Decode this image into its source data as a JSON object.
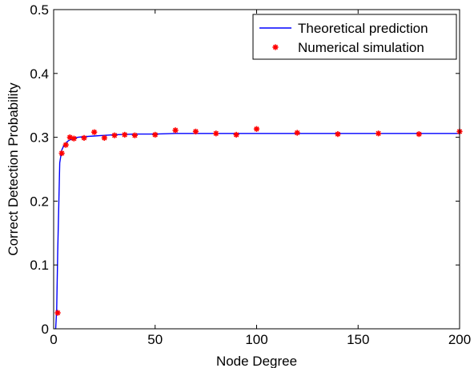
{
  "chart_data": {
    "type": "line",
    "xlabel": "Node Degree",
    "ylabel": "Correct Detection Probability",
    "xlim": [
      0,
      200
    ],
    "ylim": [
      0,
      0.5
    ],
    "xticks": [
      0,
      50,
      100,
      150,
      200
    ],
    "yticks": [
      0,
      0.1,
      0.2,
      0.3,
      0.4,
      0.5
    ],
    "xtick_labels": [
      "0",
      "50",
      "100",
      "150",
      "200"
    ],
    "ytick_labels": [
      "0",
      "0.1",
      "0.2",
      "0.3",
      "0.4",
      "0.5"
    ],
    "grid": false,
    "legend_position": "top-right",
    "series": [
      {
        "name": "Theoretical prediction",
        "kind": "line",
        "color": "#0000ff",
        "x": [
          1,
          1.5,
          2,
          3,
          4,
          5,
          6,
          7,
          8,
          10,
          12,
          15,
          20,
          25,
          30,
          40,
          50,
          60,
          80,
          100,
          120,
          150,
          200
        ],
        "y": [
          0,
          0.03,
          0.12,
          0.26,
          0.28,
          0.287,
          0.291,
          0.294,
          0.296,
          0.298,
          0.3,
          0.301,
          0.302,
          0.303,
          0.304,
          0.305,
          0.305,
          0.306,
          0.306,
          0.306,
          0.306,
          0.306,
          0.306
        ]
      },
      {
        "name": "Numerical simulation",
        "kind": "scatter",
        "color": "#ff0000",
        "x": [
          2,
          4,
          6,
          8,
          10,
          15,
          20,
          25,
          30,
          35,
          40,
          50,
          60,
          70,
          80,
          90,
          100,
          120,
          140,
          160,
          180,
          200
        ],
        "y": [
          0.025,
          0.275,
          0.288,
          0.3,
          0.298,
          0.299,
          0.308,
          0.299,
          0.303,
          0.304,
          0.303,
          0.304,
          0.311,
          0.309,
          0.306,
          0.304,
          0.313,
          0.307,
          0.305,
          0.306,
          0.305,
          0.309
        ]
      }
    ]
  }
}
